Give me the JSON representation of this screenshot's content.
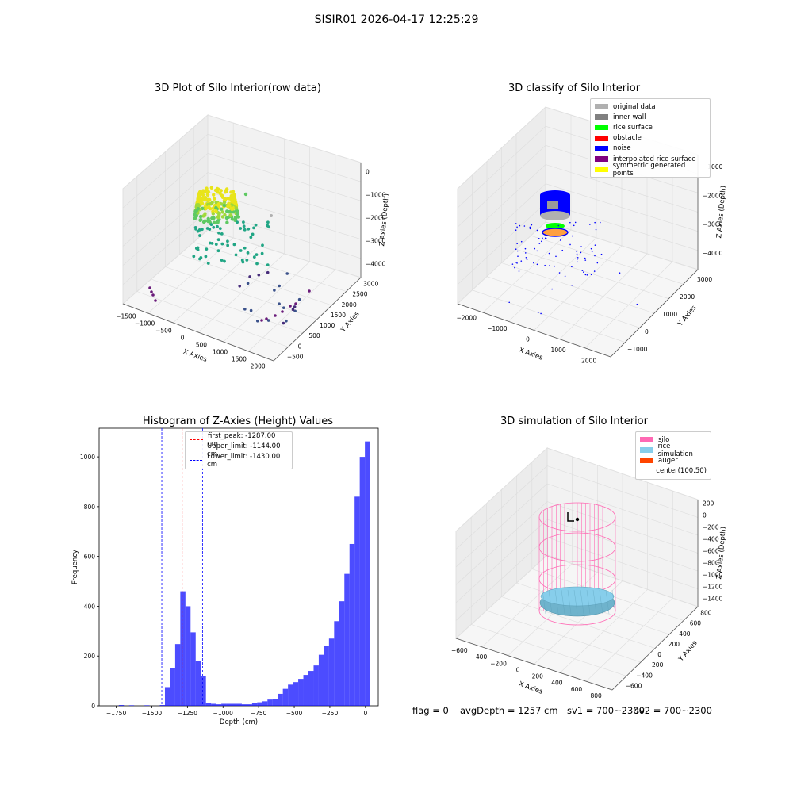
{
  "suptitle": "SISIR01 2026-04-17 12:25:29",
  "panels": {
    "raw": {
      "title": "3D Plot of Silo Interior(row data)",
      "xlabel": "X Axies",
      "ylabel": "Y Axies",
      "zlabel": "Z Axies (Depth)",
      "xticks": [
        "−1500",
        "−1000",
        "−500",
        "0",
        "500",
        "1000",
        "1500",
        "2000"
      ],
      "yticks": [
        "−500",
        "0",
        "500",
        "1000",
        "1500",
        "2000",
        "2500",
        "3000"
      ],
      "zticks": [
        "0",
        "−1000",
        "−2000",
        "−3000",
        "−4000"
      ]
    },
    "classify": {
      "title": "3D classify of Silo Interior",
      "xlabel": "X Axies",
      "ylabel": "Y Axies",
      "zlabel": "Z Axies (Depth)",
      "xticks": [
        "−2000",
        "−1000",
        "0",
        "1000",
        "2000"
      ],
      "yticks": [
        "−1000",
        "0",
        "1000",
        "2000",
        "3000"
      ],
      "zticks": [
        "−1000",
        "−2000",
        "−3000",
        "−4000"
      ],
      "legend": [
        {
          "label": "original data",
          "color": "#b0b0b0"
        },
        {
          "label": "inner wall",
          "color": "#808080"
        },
        {
          "label": "rice surface",
          "color": "#00ff00"
        },
        {
          "label": "obstacle",
          "color": "#ff0000"
        },
        {
          "label": "noise",
          "color": "#0000ff"
        },
        {
          "label": "interpolated rice surface",
          "color": "#800080"
        },
        {
          "label": "symmetric generated points",
          "color": "#ffff00"
        }
      ]
    },
    "simulation": {
      "title": "3D simulation of Silo Interior",
      "xlabel": "X Axies",
      "ylabel": "Y Axies",
      "zlabel": "Z Axies (Depth)",
      "xticks": [
        "−600",
        "−400",
        "−200",
        "0",
        "200",
        "400",
        "600",
        "800"
      ],
      "yticks": [
        "−600",
        "−400",
        "−200",
        "0",
        "200",
        "400",
        "600",
        "800"
      ],
      "zticks": [
        "200",
        "0",
        "−200",
        "−400",
        "−600",
        "−800",
        "−1000",
        "−1200",
        "−1400"
      ],
      "legend": [
        {
          "label": "silo",
          "color": "#ff69b4"
        },
        {
          "label": "rice simulation",
          "color": "#87ceeb"
        },
        {
          "label": "auger",
          "color": "#ff4500"
        },
        {
          "label": "center(100,50)",
          "color": "#ffffff"
        }
      ]
    }
  },
  "status": {
    "flag": "flag = 0",
    "avg_depth": "avgDepth = 1257 cm",
    "sv1": "sv1 = 700~2300",
    "sv2": "sv2 = 700~2300"
  },
  "colors": {
    "bars": "#0000ff",
    "first_peak": "#ff0000",
    "limits": "#0000ff"
  },
  "chart_data": {
    "type": "bar",
    "title": "Histogram of Z-Axies (Height) Values",
    "xlabel": "Depth (cm)",
    "ylabel": "Frequency",
    "xlim": [
      -1870,
      90
    ],
    "ylim": [
      0,
      1115
    ],
    "xticks": [
      -1750,
      -1500,
      -1250,
      -1000,
      -750,
      -500,
      -250,
      0
    ],
    "yticks": [
      0,
      200,
      400,
      600,
      800,
      1000
    ],
    "bin_width": 36,
    "bins": [
      [
        -1732,
        3
      ],
      [
        -1660,
        2
      ],
      [
        -1552,
        2
      ],
      [
        -1444,
        3
      ],
      [
        -1408,
        75
      ],
      [
        -1372,
        150
      ],
      [
        -1336,
        248
      ],
      [
        -1300,
        460
      ],
      [
        -1264,
        400
      ],
      [
        -1228,
        295
      ],
      [
        -1192,
        180
      ],
      [
        -1156,
        120
      ],
      [
        -1120,
        10
      ],
      [
        -1084,
        8
      ],
      [
        -1048,
        6
      ],
      [
        -1012,
        8
      ],
      [
        -976,
        8
      ],
      [
        -940,
        8
      ],
      [
        -904,
        8
      ],
      [
        -868,
        6
      ],
      [
        -832,
        6
      ],
      [
        -796,
        12
      ],
      [
        -760,
        14
      ],
      [
        -724,
        18
      ],
      [
        -688,
        25
      ],
      [
        -652,
        28
      ],
      [
        -616,
        48
      ],
      [
        -580,
        68
      ],
      [
        -544,
        85
      ],
      [
        -508,
        95
      ],
      [
        -472,
        108
      ],
      [
        -436,
        124
      ],
      [
        -400,
        140
      ],
      [
        -364,
        162
      ],
      [
        -328,
        205
      ],
      [
        -292,
        240
      ],
      [
        -256,
        270
      ],
      [
        -220,
        340
      ],
      [
        -184,
        420
      ],
      [
        -148,
        530
      ],
      [
        -112,
        650
      ],
      [
        -76,
        840
      ],
      [
        -40,
        1000
      ],
      [
        -4,
        1062
      ]
    ],
    "reference_lines": [
      {
        "label": "first_peak: -1287.00 cm",
        "x": -1287,
        "color": "#ff0000"
      },
      {
        "label": "Upper_limit: -1144.00 cm",
        "x": -1144,
        "color": "#0000ff"
      },
      {
        "label": "Lower_limit: -1430.00 cm",
        "x": -1430,
        "color": "#0000ff"
      }
    ]
  }
}
